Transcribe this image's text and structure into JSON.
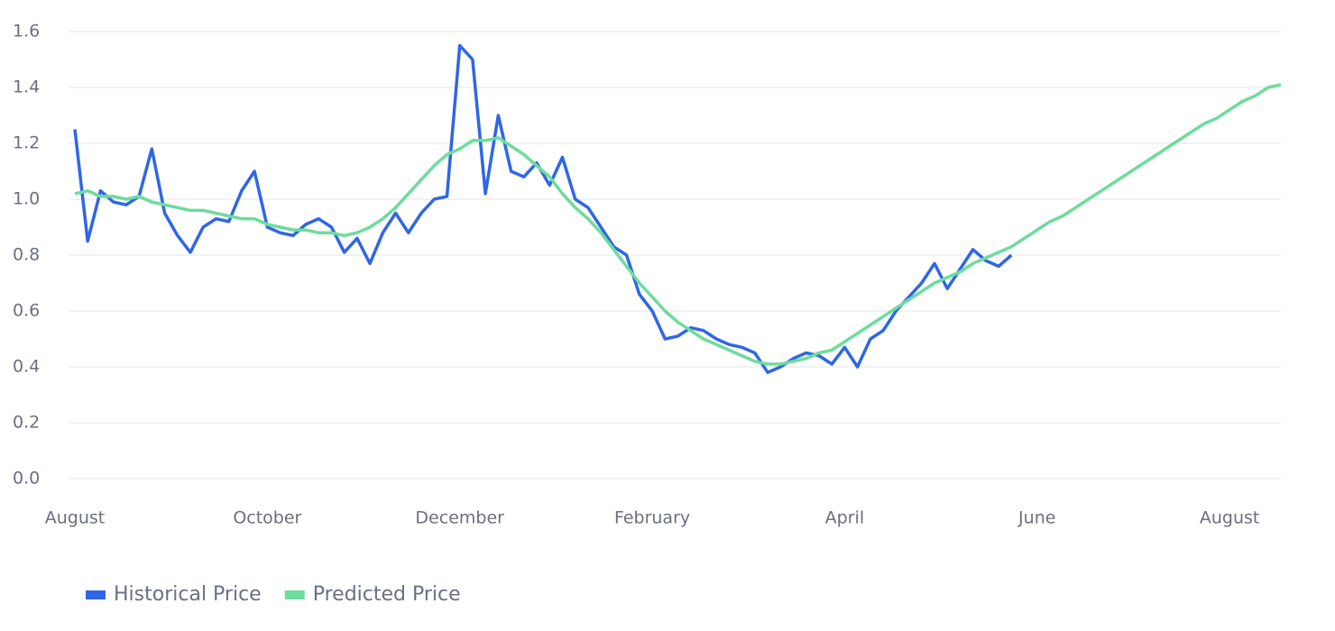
{
  "chart_data": {
    "type": "line",
    "categories": [
      "August",
      null,
      null,
      null,
      null,
      null,
      null,
      null,
      null,
      null,
      null,
      null,
      null,
      null,
      null,
      "October",
      null,
      null,
      null,
      null,
      null,
      null,
      null,
      null,
      null,
      null,
      null,
      null,
      null,
      null,
      "December",
      null,
      null,
      null,
      null,
      null,
      null,
      null,
      null,
      null,
      null,
      null,
      null,
      null,
      null,
      "February",
      null,
      null,
      null,
      null,
      null,
      null,
      null,
      null,
      null,
      null,
      null,
      null,
      null,
      null,
      "April",
      null,
      null,
      null,
      null,
      null,
      null,
      null,
      null,
      null,
      null,
      null,
      null,
      null,
      null,
      "June",
      null,
      null,
      null,
      null,
      null,
      null,
      null,
      null,
      null,
      null,
      null,
      null,
      null,
      null,
      "August",
      null,
      null,
      null,
      null
    ],
    "series": [
      {
        "name": "Historical Price",
        "color": "#2f66e6",
        "values": [
          1.25,
          0.85,
          1.03,
          0.99,
          0.98,
          1.01,
          1.18,
          0.95,
          0.87,
          0.81,
          0.9,
          0.93,
          0.92,
          1.03,
          1.1,
          0.9,
          0.88,
          0.87,
          0.91,
          0.93,
          0.9,
          0.81,
          0.86,
          0.77,
          0.88,
          0.95,
          0.88,
          0.95,
          1.0,
          1.01,
          1.55,
          1.5,
          1.02,
          1.3,
          1.1,
          1.08,
          1.13,
          1.05,
          1.15,
          1.0,
          0.97,
          0.9,
          0.83,
          0.8,
          0.66,
          0.6,
          0.5,
          0.51,
          0.54,
          0.53,
          0.5,
          0.48,
          0.47,
          0.45,
          0.38,
          0.4,
          0.43,
          0.45,
          0.44,
          0.41,
          0.47,
          0.4,
          0.5,
          0.53,
          0.6,
          0.65,
          0.7,
          0.77,
          0.68,
          0.75,
          0.82,
          0.78,
          0.76,
          0.8,
          null,
          null,
          null,
          null,
          null,
          null,
          null,
          null,
          null,
          null,
          null,
          null,
          null,
          null,
          null,
          null,
          null,
          null,
          null,
          null,
          null
        ]
      },
      {
        "name": "Predicted Price",
        "color": "#6ddc9c",
        "values": [
          1.02,
          1.03,
          1.01,
          1.01,
          1.0,
          1.01,
          0.99,
          0.98,
          0.97,
          0.96,
          0.96,
          0.95,
          0.94,
          0.93,
          0.93,
          0.91,
          0.9,
          0.89,
          0.89,
          0.88,
          0.88,
          0.87,
          0.88,
          0.9,
          0.93,
          0.97,
          1.02,
          1.07,
          1.12,
          1.16,
          1.18,
          1.21,
          1.21,
          1.22,
          1.19,
          1.16,
          1.12,
          1.08,
          1.02,
          0.97,
          0.93,
          0.88,
          0.82,
          0.76,
          0.7,
          0.65,
          0.6,
          0.56,
          0.53,
          0.5,
          0.48,
          0.46,
          0.44,
          0.42,
          0.41,
          0.41,
          0.42,
          0.43,
          0.45,
          0.46,
          0.49,
          0.52,
          0.55,
          0.58,
          0.61,
          0.64,
          0.67,
          0.7,
          0.72,
          0.74,
          0.77,
          0.79,
          0.81,
          0.83,
          0.86,
          0.89,
          0.92,
          0.94,
          0.97,
          1.0,
          1.03,
          1.06,
          1.09,
          1.12,
          1.15,
          1.18,
          1.21,
          1.24,
          1.27,
          1.29,
          1.32,
          1.35,
          1.37,
          1.4,
          1.41
        ]
      }
    ],
    "ylim": [
      0,
      1.6
    ],
    "yticks": [
      {
        "value": 0,
        "label": "0.0"
      },
      0.2,
      0.4,
      0.6,
      0.8,
      {
        "value": 1,
        "label": "1.0"
      },
      1.2,
      1.4,
      1.6
    ],
    "grid": true,
    "legend": "bottom-left"
  }
}
